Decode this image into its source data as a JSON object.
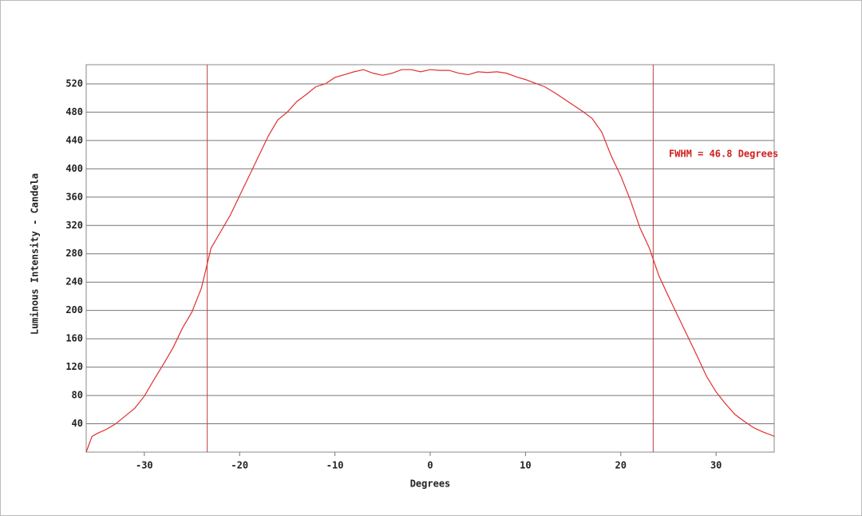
{
  "chart_data": {
    "type": "line",
    "x_label": "Degrees",
    "y_label": "Luminous Intensity - Candela",
    "annotation": "FWHM = 46.8 Degrees",
    "vlines": [
      -23.4,
      23.4
    ],
    "xlim": [
      -36.1,
      36.1
    ],
    "ylim": [
      0,
      547
    ],
    "xticks": [
      -30,
      -20,
      -10,
      0,
      10,
      20,
      30
    ],
    "yticks": [
      40,
      80,
      120,
      160,
      200,
      240,
      280,
      320,
      360,
      400,
      440,
      480,
      520
    ],
    "grid": true,
    "series": [
      {
        "color": "#e03030",
        "x": [
          -36.1,
          -35.5,
          -35,
          -34,
          -33,
          -32,
          -31,
          -30,
          -29,
          -28,
          -27,
          -26,
          -25,
          -24,
          -23,
          -22,
          -21,
          -20,
          -19,
          -18,
          -17,
          -16,
          -15,
          -14,
          -13,
          -12,
          -11,
          -10,
          -9,
          -8,
          -7,
          -6,
          -5,
          -4,
          -3,
          -2,
          -1,
          0,
          1,
          2,
          3,
          4,
          5,
          6,
          7,
          8,
          9,
          10,
          11,
          12,
          13,
          14,
          15,
          16,
          17,
          18,
          19,
          20,
          21,
          22,
          23,
          24,
          25,
          26,
          27,
          28,
          29,
          30,
          31,
          32,
          33,
          34,
          35,
          36,
          36.1
        ],
        "values": [
          0,
          22,
          26,
          32,
          40,
          51,
          62,
          79,
          102,
          124,
          147,
          175,
          198,
          232,
          288,
          311,
          334,
          362,
          390,
          418,
          446,
          469,
          480,
          495,
          505,
          516,
          520,
          529,
          533,
          537,
          540,
          535,
          532,
          535,
          540,
          540,
          537,
          540,
          539,
          539,
          535,
          533,
          537,
          536,
          537,
          535,
          530,
          526,
          521,
          516,
          508,
          499,
          490,
          481,
          471,
          452,
          418,
          390,
          356,
          317,
          288,
          249,
          220,
          192,
          164,
          136,
          107,
          85,
          68,
          53,
          43,
          34,
          28,
          23,
          22
        ]
      }
    ]
  }
}
